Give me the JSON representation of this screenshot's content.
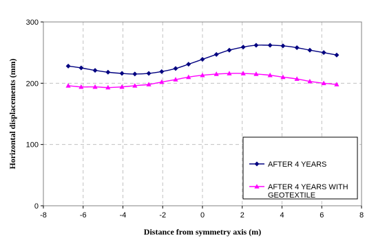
{
  "chart_data": {
    "type": "line",
    "xlabel": "Distance from symmetry axis (m)",
    "ylabel": "Horizontal displacements (mm)",
    "xlim": [
      -8,
      8
    ],
    "ylim": [
      0,
      300
    ],
    "x_ticks": [
      -8,
      -6,
      -4,
      -2,
      0,
      2,
      4,
      6,
      8
    ],
    "y_ticks": [
      0,
      100,
      200,
      300
    ],
    "grid": "dashed",
    "legend_position": "bottom-right",
    "series": [
      {
        "name": "AFTER 4 YEARS",
        "color": "#000080",
        "marker": "diamond",
        "x": [
          -6.75,
          -6.1,
          -5.4,
          -4.75,
          -4.05,
          -3.4,
          -2.7,
          -2.05,
          -1.35,
          -0.7,
          0,
          0.7,
          1.35,
          2.05,
          2.7,
          3.4,
          4.05,
          4.75,
          5.4,
          6.1,
          6.75
        ],
        "y": [
          228,
          225,
          221,
          218,
          216,
          215,
          216,
          219,
          224,
          231,
          239,
          247,
          254,
          259,
          262,
          262,
          261,
          258,
          254,
          250,
          246
        ]
      },
      {
        "name": "AFTER 4 YEARS WITH\nGEOTEXTILE",
        "color": "#ff00ff",
        "marker": "triangle",
        "x": [
          -6.75,
          -6.1,
          -5.4,
          -4.75,
          -4.05,
          -3.4,
          -2.7,
          -2.05,
          -1.35,
          -0.7,
          0,
          0.7,
          1.35,
          2.05,
          2.7,
          3.4,
          4.05,
          4.75,
          5.4,
          6.1,
          6.75
        ],
        "y": [
          196,
          194,
          194,
          193,
          194,
          196,
          198,
          202,
          206,
          210,
          213,
          215,
          216,
          216,
          215,
          213,
          210,
          207,
          203,
          200,
          198
        ]
      }
    ]
  }
}
